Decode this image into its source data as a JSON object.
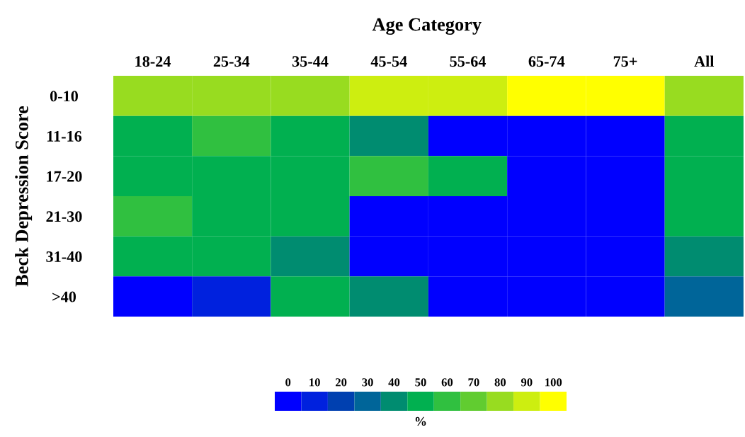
{
  "chart_data": {
    "type": "heatmap",
    "title": "Age Category",
    "ylabel": "Beck Depression Score",
    "clabel": "%",
    "categories": [
      "18-24",
      "25-34",
      "35-44",
      "45-54",
      "55-64",
      "65-74",
      "75+",
      "All"
    ],
    "y_categories": [
      "0-10",
      "11-16",
      "17-20",
      "21-30",
      "31-40",
      ">40"
    ],
    "cells": [
      [
        80,
        80,
        80,
        90,
        90,
        100,
        100,
        80
      ],
      [
        50,
        60,
        50,
        40,
        0,
        0,
        0,
        50
      ],
      [
        50,
        50,
        50,
        60,
        50,
        0,
        0,
        50
      ],
      [
        60,
        50,
        50,
        0,
        0,
        0,
        0,
        50
      ],
      [
        50,
        50,
        40,
        0,
        0,
        0,
        0,
        40
      ],
      [
        0,
        10,
        50,
        40,
        0,
        0,
        0,
        30
      ]
    ],
    "clim": [
      -5,
      105
    ],
    "cticks": [
      0,
      10,
      20,
      30,
      40,
      50,
      60,
      70,
      80,
      90,
      100
    ],
    "colors": [
      "#0000ff",
      "#0022dd",
      "#0040b0",
      "#006699",
      "#008c70",
      "#00b050",
      "#30c040",
      "#60cc30",
      "#98dc20",
      "#ccee10",
      "#ffff00"
    ]
  }
}
